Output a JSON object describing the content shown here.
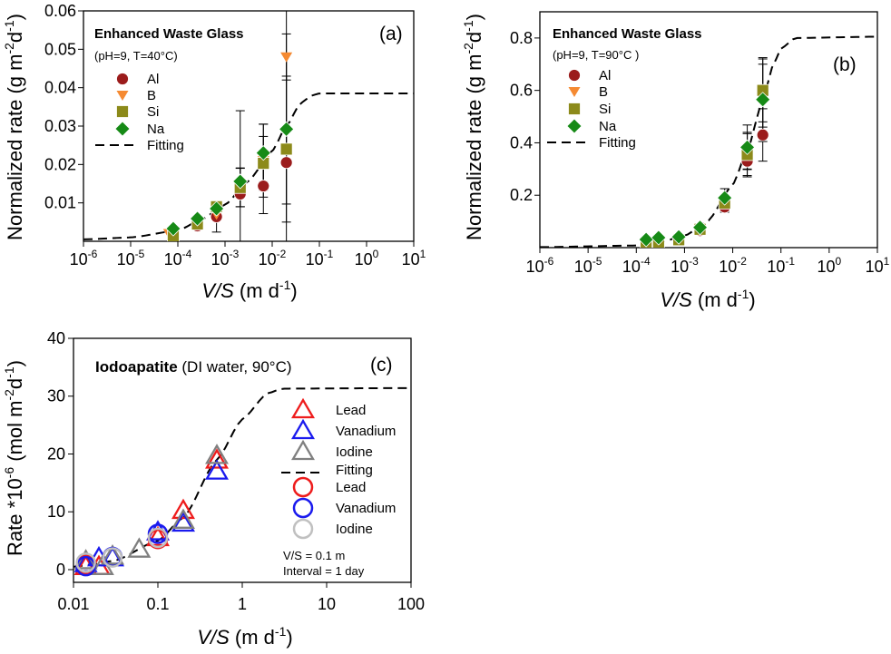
{
  "chart_data": [
    {
      "type": "scatter",
      "panel_label": "(a)",
      "title": "Enhanced Waste Glass",
      "subtitle": "(pH=9, T=40°C)",
      "xlabel": {
        "italic": "V/S",
        "rest": " (m d",
        "sup": "-1",
        "end": ")"
      },
      "ylabel": {
        "main": "Normalized rate (g m",
        "sup1": "-2",
        "mid": "d",
        "sup2": "-1",
        "end": ")"
      },
      "xscale": "log",
      "xlim": [
        1e-06,
        10
      ],
      "xtick_base": "10",
      "xtick_exponents": [
        "-6",
        "-5",
        "-4",
        "-3",
        "-2",
        "-1",
        "0",
        "1"
      ],
      "ylim": [
        0,
        0.06
      ],
      "yticks": [
        "0.01",
        "0.02",
        "0.03",
        "0.04",
        "0.05",
        "0.06"
      ],
      "series": [
        {
          "name": "Al",
          "marker": "circle",
          "color": "#9b1c1c",
          "x": [
            0.00026,
            0.00066,
            0.0021,
            0.0065,
            0.02
          ],
          "y": [
            0.004,
            0.0064,
            0.0123,
            0.0144,
            0.0205
          ],
          "err": [
            0.0005,
            0.004,
            0.0033,
            0.0072,
            0.07
          ]
        },
        {
          "name": "B",
          "marker": "triangle-down",
          "color": "#f58a32",
          "x": [
            6.5e-05,
            0.00026,
            0.00066,
            0.0021,
            0.0065,
            0.02
          ],
          "y": [
            0.002,
            0.0045,
            0.007,
            0.014,
            0.021,
            0.048
          ],
          "err": [
            0,
            0,
            0,
            0.02,
            0.0095,
            0.006
          ]
        },
        {
          "name": "Si",
          "marker": "square",
          "color": "#8c8a1a",
          "x": [
            8e-05,
            0.00026,
            0.00066,
            0.0021,
            0.0065,
            0.02
          ],
          "y": [
            0.0014,
            0.0045,
            0.009,
            0.014,
            0.0203,
            0.024
          ],
          "err": [
            0,
            0,
            0.0015,
            0.005,
            0.007,
            0.019
          ]
        },
        {
          "name": "Na",
          "marker": "diamond",
          "color": "#168a16",
          "x": [
            8e-05,
            0.00026,
            0.00066,
            0.0021,
            0.0065,
            0.02
          ],
          "y": [
            0.0033,
            0.0059,
            0.0085,
            0.0156,
            0.023,
            0.0292
          ],
          "err": [
            0,
            0,
            0.002,
            0.0035,
            0.0075,
            0.0195
          ]
        },
        {
          "name": "Fitting",
          "marker": "dashed-line",
          "color": "#000000",
          "x": [
            1e-06,
            1e-05,
            0.0001,
            0.0003,
            0.001,
            0.003,
            0.01,
            0.02,
            0.04,
            0.07,
            0.1,
            10
          ],
          "y": [
            0.0005,
            0.001,
            0.0028,
            0.0055,
            0.0095,
            0.0155,
            0.0235,
            0.03,
            0.036,
            0.038,
            0.0385,
            0.0385
          ]
        }
      ],
      "legend": "top-left"
    },
    {
      "type": "scatter",
      "panel_label": "(b)",
      "title": "Enhanced Waste Glass",
      "subtitle": "(pH=9, T=90°C )",
      "xlabel": {
        "italic": "V/S",
        "rest": " (m d",
        "sup": "-1",
        "end": ")"
      },
      "ylabel": {
        "main": "Normalized rate (g m",
        "sup1": "-2",
        "mid": "d",
        "sup2": "-1",
        "end": ")"
      },
      "xscale": "log",
      "xlim": [
        1e-06,
        10
      ],
      "xtick_base": "10",
      "xtick_exponents": [
        "-6",
        "-5",
        "-4",
        "-3",
        "-2",
        "-1",
        "0",
        "1"
      ],
      "ylim": [
        0,
        0.9
      ],
      "yticks": [
        "0.2",
        "0.4",
        "0.6",
        "0.8"
      ],
      "series": [
        {
          "name": "Al",
          "marker": "circle",
          "color": "#9b1c1c",
          "x": [
            0.00076,
            0.0021,
            0.0068,
            0.02,
            0.042
          ],
          "y": [
            0.03,
            0.065,
            0.155,
            0.33,
            0.43
          ],
          "err": [
            0,
            0,
            0.02,
            0.06,
            0.1
          ]
        },
        {
          "name": "B",
          "marker": "triangle-down",
          "color": "#f58a32",
          "x": [
            0.00016,
            0.00029,
            0.00076,
            0.0021,
            0.0068,
            0.02,
            0.042
          ],
          "y": [
            0.006,
            0.018,
            0.03,
            0.07,
            0.17,
            0.37,
            0.58
          ],
          "err": [
            0,
            0,
            0,
            0,
            0.03,
            0.07,
            0.12
          ]
        },
        {
          "name": "Si",
          "marker": "square",
          "color": "#8c8a1a",
          "x": [
            0.00016,
            0.00029,
            0.00076,
            0.0021,
            0.0068,
            0.02,
            0.042
          ],
          "y": [
            0.004,
            0.016,
            0.03,
            0.07,
            0.17,
            0.355,
            0.6
          ],
          "err": [
            0,
            0,
            0,
            0,
            0.03,
            0.08,
            0.12
          ]
        },
        {
          "name": "Na",
          "marker": "diamond",
          "color": "#168a16",
          "x": [
            0.00016,
            0.00029,
            0.00076,
            0.0021,
            0.0068,
            0.02,
            0.042
          ],
          "y": [
            0.031,
            0.038,
            0.041,
            0.077,
            0.19,
            0.383,
            0.565
          ],
          "err": [
            0,
            0,
            0,
            0,
            0.035,
            0.085,
            0.16
          ]
        },
        {
          "name": "Fitting",
          "marker": "dashed-line",
          "color": "#000000",
          "x": [
            1e-06,
            0.0001,
            0.0003,
            0.001,
            0.003,
            0.01,
            0.02,
            0.04,
            0.07,
            0.1,
            0.2,
            10
          ],
          "y": [
            0.002,
            0.008,
            0.02,
            0.045,
            0.1,
            0.24,
            0.37,
            0.55,
            0.7,
            0.76,
            0.8,
            0.805
          ]
        }
      ],
      "legend": "top-left"
    },
    {
      "type": "scatter",
      "panel_label": "(c)",
      "title": "Iodoapatite",
      "subtitle": " (DI water, 90°C)",
      "xlabel": {
        "italic": "V/S",
        "rest": " (m d",
        "sup": "-1",
        "end": ")"
      },
      "ylabel": {
        "main": "Rate *10",
        "sup1": "-6",
        "mid": " (mol m",
        "sup2": "-2",
        "mid2": "d",
        "sup3": "-1",
        "end": ")"
      },
      "xscale": "log",
      "xlim": [
        0.01,
        100
      ],
      "xticks": [
        "0.01",
        "0.1",
        "1",
        "10",
        "100"
      ],
      "ylim": [
        -2.2,
        40
      ],
      "yticks": [
        "0",
        "10",
        "20",
        "30",
        "40"
      ],
      "series": [
        {
          "name": "Lead",
          "marker": "open-triangle",
          "color": "#ee1c1c",
          "x": [
            0.014,
            0.02,
            0.1,
            0.2,
            0.5
          ],
          "y": [
            0.5,
            0.5,
            5.5,
            10.2,
            18.9
          ]
        },
        {
          "name": "Vanadium",
          "marker": "open-triangle",
          "color": "#1a1aee",
          "x": [
            0.014,
            0.02,
            0.029,
            0.1,
            0.2,
            0.5
          ],
          "y": [
            1,
            2,
            2,
            6.5,
            8,
            17
          ]
        },
        {
          "name": "Iodine",
          "marker": "open-triangle",
          "color": "#808080",
          "x": [
            0.014,
            0.022,
            0.029,
            0.06,
            0.2,
            0.5
          ],
          "y": [
            1.5,
            0.5,
            2.3,
            3.5,
            8.5,
            19.7
          ]
        },
        {
          "name": "Fitting",
          "marker": "dashed-line",
          "color": "#000000",
          "x": [
            0.01,
            0.03,
            0.1,
            0.2,
            0.5,
            1,
            2,
            3,
            100
          ],
          "y": [
            0.5,
            1.5,
            5,
            9,
            19,
            26,
            30.5,
            31.3,
            31.4
          ]
        },
        {
          "name": "Lead",
          "marker": "open-circle",
          "color": "#ee1c1c",
          "x": [
            0.014,
            0.1
          ],
          "y": [
            0.8,
            5.3
          ]
        },
        {
          "name": "Vanadium",
          "marker": "open-circle",
          "color": "#1a1aee",
          "x": [
            0.014,
            0.029,
            0.1
          ],
          "y": [
            0.6,
            2.2,
            6.2
          ]
        },
        {
          "name": "Iodine",
          "marker": "open-circle",
          "color": "#c0c0c0",
          "x": [
            0.014,
            0.029,
            0.1
          ],
          "y": [
            1.2,
            2.1,
            5.5
          ]
        }
      ],
      "annotations": [
        "V/S = 0.1 m",
        "Interval = 1 day"
      ],
      "legend": "right"
    }
  ]
}
